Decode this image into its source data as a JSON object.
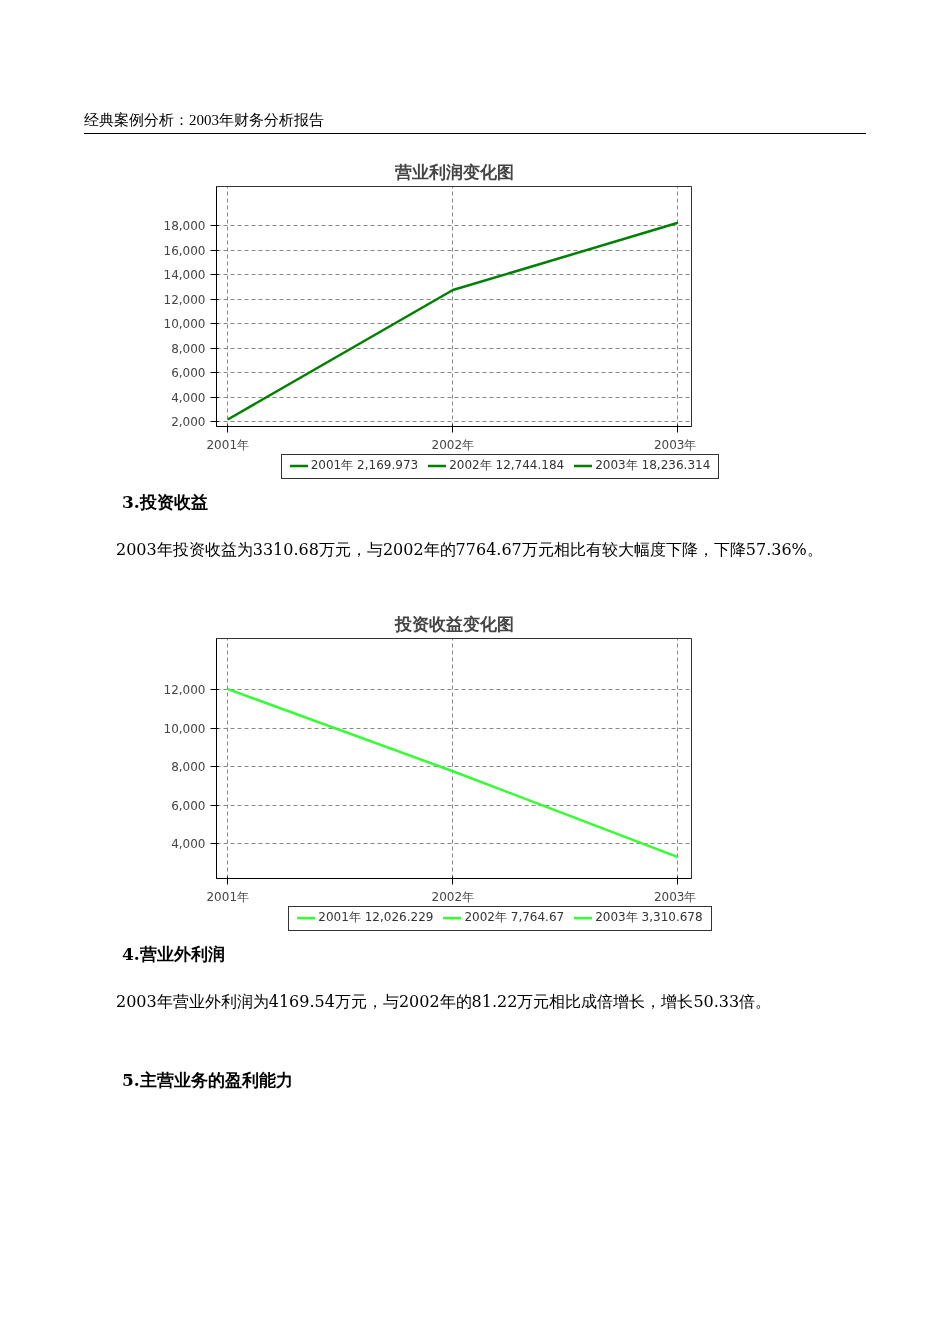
{
  "chart_data": [
    {
      "type": "line",
      "title": "营业利润变化图",
      "annotations": [
        "经典案例分析：2003年财务分析报告",
        "2001年 2,169.973",
        "2002年 12,744.184",
        "2003年 18,236.314",
        "3.投资收益",
        "2003年投资收益为3310.68万元，与2002年的7764.67万元相比有较大幅度下降，下降57.36%。"
      ],
      "x": [
        2001,
        2002,
        2003
      ],
      "series": [
        {
          "color": "#008000",
          "values": [
            2169.973,
            12744.184,
            18236.314
          ]
        }
      ],
      "xlim": [
        2000.95,
        2003.06
      ],
      "xticks": [
        {
          "value": 2001,
          "label": "2001年"
        },
        {
          "value": 2002,
          "label": "2002年"
        },
        {
          "value": 2003,
          "label": "2003年"
        }
      ],
      "ylim": [
        1600,
        21200
      ],
      "yticks": [
        {
          "value": 2000,
          "label": "2,000"
        },
        {
          "value": 4000,
          "label": "4,000"
        },
        {
          "value": 6000,
          "label": "6,000"
        },
        {
          "value": 8000,
          "label": "8,000"
        },
        {
          "value": 10000,
          "label": "10,000"
        },
        {
          "value": 12000,
          "label": "12,000"
        },
        {
          "value": 14000,
          "label": "14,000"
        },
        {
          "value": 16000,
          "label": "16,000"
        },
        {
          "value": 18000,
          "label": "18,000"
        }
      ],
      "grid": true,
      "line_style": "solid"
    },
    {
      "type": "line",
      "title": "投资收益变化图",
      "annotations": [
        "2001年 12,026.229",
        "2002年 7,764.67",
        "2003年 3,310.678",
        "4.营业外利润",
        "2003年营业外利润为4169.54万元，与2002年的81.22万元相比成倍增长，增长50.33倍。",
        "5.主营业务的盈利能力"
      ],
      "x": [
        2001,
        2002,
        2003
      ],
      "series": [
        {
          "color": "#33ff33",
          "values": [
            12026.229,
            7764.67,
            3310.678
          ]
        }
      ],
      "xlim": [
        2000.95,
        2003.06
      ],
      "xticks": [
        {
          "value": 2001,
          "label": "2001年"
        },
        {
          "value": 2002,
          "label": "2002年"
        },
        {
          "value": 2003,
          "label": "2003年"
        }
      ],
      "ylim": [
        2200,
        14650
      ],
      "yticks": [
        {
          "value": 4000,
          "label": "4,000"
        },
        {
          "value": 6000,
          "label": "6,000"
        },
        {
          "value": 8000,
          "label": "8,000"
        },
        {
          "value": 10000,
          "label": "10,000"
        },
        {
          "value": 12000,
          "label": "12,000"
        }
      ],
      "grid": true,
      "line_style": "solid"
    }
  ]
}
